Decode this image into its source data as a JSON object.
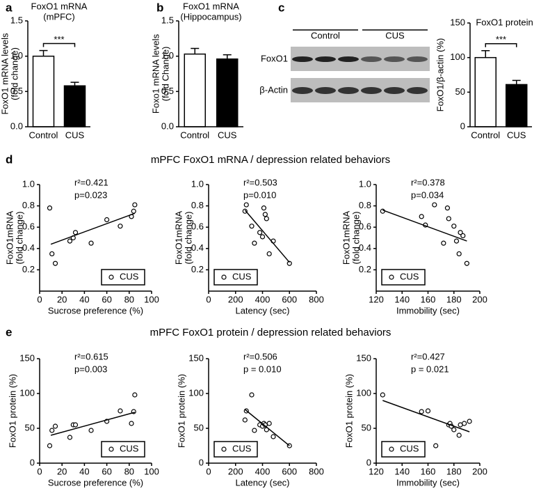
{
  "chart_data": [
    {
      "type": "bar",
      "panel": "a",
      "title": "FoxO1 mRNA",
      "subtitle": "(mPFC)",
      "ylabel": [
        "FoxO1 mRNA levels",
        "(fold change)"
      ],
      "categories": [
        "Control",
        "CUS"
      ],
      "values": [
        1.0,
        0.58
      ],
      "errors": [
        0.08,
        0.05
      ],
      "colors": [
        "#ffffff",
        "#000000"
      ],
      "ylim": [
        0,
        1.5
      ],
      "yticks": [
        {
          "value": 0,
          "label": "0.0"
        },
        0.5,
        {
          "value": 1,
          "label": "1.0"
        },
        1.5
      ],
      "significance": "***"
    },
    {
      "type": "bar",
      "panel": "b",
      "title": "FoxO1 mRNA",
      "subtitle": "(Hippocampus)",
      "ylabel": [
        "Foxo1 mRNA levels",
        "(fold Change)"
      ],
      "categories": [
        "Control",
        "CUS"
      ],
      "values": [
        1.03,
        0.96
      ],
      "errors": [
        0.08,
        0.06
      ],
      "colors": [
        "#ffffff",
        "#000000"
      ],
      "ylim": [
        0,
        1.5
      ],
      "yticks": [
        {
          "value": 0,
          "label": "0.0"
        },
        0.5,
        {
          "value": 1,
          "label": "1.0"
        },
        1.5
      ]
    },
    {
      "type": "bar",
      "panel": "c",
      "title": "FoxO1 protein",
      "ylabel": [
        "FoxO1/β-actin (%)"
      ],
      "blot": {
        "groups": [
          "Control",
          "CUS"
        ],
        "rows": [
          "FoxO1",
          "β-Actin"
        ]
      },
      "categories": [
        "Control",
        "CUS"
      ],
      "values": [
        100,
        61
      ],
      "errors": [
        10,
        6
      ],
      "colors": [
        "#ffffff",
        "#000000"
      ],
      "ylim": [
        0,
        150
      ],
      "yticks": [
        0,
        50,
        100,
        150
      ],
      "significance": "***"
    },
    {
      "type": "scatter",
      "panel": "d",
      "heading": "mPFC FoxO1 mRNA / depression related behaviors",
      "stats": [
        "r²=0.421",
        "p=0.023"
      ],
      "xlabel": "Sucrose preference (%)",
      "ylabel": [
        "FoxO1mRNA",
        "(fold change)"
      ],
      "x": [
        9,
        11,
        14,
        27,
        30,
        32,
        46,
        60,
        72,
        82,
        84,
        85
      ],
      "series": [
        {
          "name": "CUS",
          "color": "#000000",
          "values": [
            0.78,
            0.35,
            0.26,
            0.47,
            0.5,
            0.55,
            0.45,
            0.67,
            0.61,
            0.7,
            0.75,
            0.81
          ]
        }
      ],
      "fit": {
        "x": [
          10,
          85
        ],
        "y": [
          0.44,
          0.73
        ]
      },
      "legend": "lower right",
      "xlim": [
        0,
        100
      ],
      "xticks": [
        0,
        20,
        40,
        60,
        80,
        100
      ],
      "ylim": [
        0,
        1
      ],
      "yticks": [
        0.2,
        0.4,
        0.6,
        0.8,
        {
          "value": 1,
          "label": "1.0"
        }
      ]
    },
    {
      "type": "scatter",
      "stats": [
        "r²=0.503",
        "p=0.010"
      ],
      "xlabel": "Latency (sec)",
      "ylabel": [
        "FoxO1mRNA",
        "(fold change)"
      ],
      "x": [
        270,
        280,
        320,
        340,
        380,
        400,
        410,
        420,
        430,
        450,
        480,
        600
      ],
      "series": [
        {
          "name": "CUS",
          "color": "#000000",
          "values": [
            0.75,
            0.81,
            0.61,
            0.45,
            0.55,
            0.51,
            0.78,
            0.72,
            0.68,
            0.35,
            0.47,
            0.26
          ]
        }
      ],
      "fit": {
        "x": [
          270,
          600
        ],
        "y": [
          0.76,
          0.27
        ]
      },
      "legend": "lower left",
      "xlim": [
        0,
        800
      ],
      "xticks": [
        0,
        200,
        400,
        600,
        800
      ],
      "ylim": [
        0,
        1
      ],
      "yticks": [
        0.2,
        0.4,
        0.6,
        0.8,
        {
          "value": 1,
          "label": "1.0"
        }
      ]
    },
    {
      "type": "scatter",
      "stats": [
        "r²=0.378",
        "p=0.034"
      ],
      "xlabel": "Immobility (sec)",
      "ylabel": [
        "FoxO1mRNA",
        "(fold change)"
      ],
      "x": [
        125,
        155,
        158,
        165,
        172,
        175,
        176,
        180,
        182,
        184,
        185,
        187,
        190
      ],
      "series": [
        {
          "name": "CUS",
          "color": "#000000",
          "values": [
            0.75,
            0.7,
            0.62,
            0.81,
            0.45,
            0.78,
            0.68,
            0.61,
            0.47,
            0.35,
            0.55,
            0.52,
            0.26
          ]
        }
      ],
      "fit": {
        "x": [
          125,
          190
        ],
        "y": [
          0.76,
          0.47
        ]
      },
      "legend": "lower left",
      "xlim": [
        120,
        200
      ],
      "xticks": [
        120,
        140,
        160,
        180,
        200
      ],
      "ylim": [
        0,
        1
      ],
      "yticks": [
        0.2,
        0.4,
        0.6,
        0.8,
        {
          "value": 1,
          "label": "1.0"
        }
      ]
    },
    {
      "type": "scatter",
      "panel": "e",
      "heading": "mPFC FoxO1 protein / depression related behaviors",
      "stats": [
        "r²=0.615",
        "p=0.003"
      ],
      "xlabel": "Sucrose preference (%)",
      "ylabel": [
        "FoxO1 protein (%)"
      ],
      "x": [
        9,
        11,
        14,
        27,
        30,
        32,
        46,
        60,
        72,
        82,
        84,
        85
      ],
      "series": [
        {
          "name": "CUS",
          "color": "#000000",
          "values": [
            25,
            47,
            53,
            37,
            55,
            55,
            47,
            60,
            75,
            57,
            74,
            98
          ]
        }
      ],
      "fit": {
        "x": [
          10,
          85
        ],
        "y": [
          40,
          73
        ]
      },
      "legend": "lower right",
      "xlim": [
        0,
        100
      ],
      "xticks": [
        0,
        20,
        40,
        60,
        80,
        100
      ],
      "ylim": [
        0,
        150
      ],
      "yticks": [
        0,
        50,
        100,
        150
      ]
    },
    {
      "type": "scatter",
      "stats": [
        "r²=0.506",
        "p = 0.010"
      ],
      "xlabel": "Latency (sec)",
      "ylabel": [
        "FoxO1 protein (%)"
      ],
      "x": [
        270,
        280,
        320,
        340,
        380,
        400,
        410,
        420,
        430,
        450,
        480,
        600
      ],
      "series": [
        {
          "name": "CUS",
          "color": "#000000",
          "values": [
            62,
            75,
            98,
            47,
            55,
            53,
            57,
            55,
            48,
            57,
            38,
            25
          ]
        }
      ],
      "fit": {
        "x": [
          270,
          600
        ],
        "y": [
          77,
          25
        ]
      },
      "legend": "lower left",
      "xlim": [
        0,
        800
      ],
      "xticks": [
        0,
        200,
        400,
        600,
        800
      ],
      "ylim": [
        0,
        150
      ],
      "yticks": [
        0,
        50,
        100,
        150
      ]
    },
    {
      "type": "scatter",
      "stats": [
        "r²=0.427",
        "p = 0.021"
      ],
      "xlabel": "Immobility (sec)",
      "ylabel": [
        "FoxO1 protein (%)"
      ],
      "x": [
        125,
        155,
        160,
        166,
        176,
        177,
        178,
        180,
        184,
        185,
        188,
        192
      ],
      "series": [
        {
          "name": "CUS",
          "color": "#000000",
          "values": [
            98,
            74,
            75,
            25,
            55,
            57,
            53,
            48,
            40,
            55,
            57,
            60
          ]
        }
      ],
      "fit": {
        "x": [
          125,
          192
        ],
        "y": [
          90,
          45
        ]
      },
      "legend": "lower left",
      "xlim": [
        120,
        200
      ],
      "xticks": [
        120,
        140,
        160,
        180,
        200
      ],
      "ylim": [
        0,
        150
      ],
      "yticks": [
        0,
        50,
        100,
        150
      ]
    }
  ]
}
